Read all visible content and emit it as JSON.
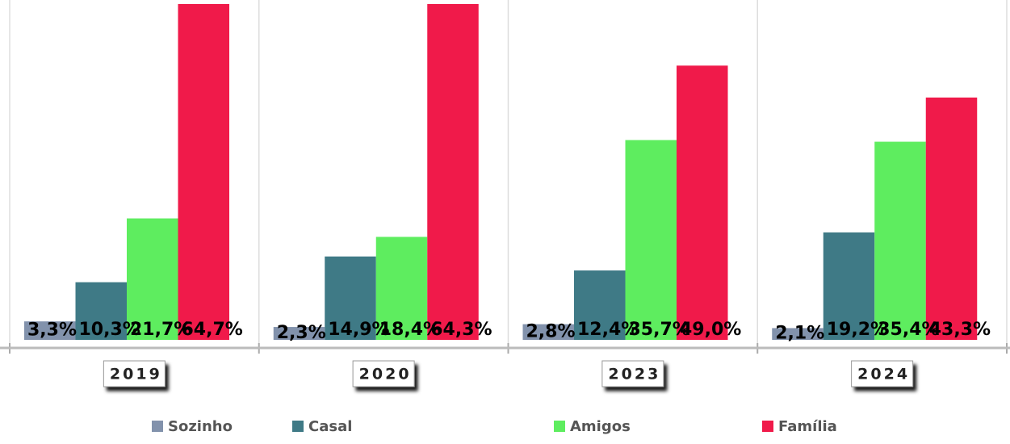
{
  "chart_data": {
    "type": "bar",
    "categories": [
      "2019",
      "2020",
      "2023",
      "2024"
    ],
    "series": [
      {
        "name": "Sozinho",
        "color": "#8292ac",
        "values": [
          3.3,
          2.3,
          2.8,
          2.1
        ],
        "value_labels": [
          "3,3%",
          "2,3%",
          "2,8%",
          "2,1%"
        ]
      },
      {
        "name": "Casal",
        "color": "#3f7a86",
        "values": [
          10.3,
          14.9,
          12.4,
          19.2
        ],
        "value_labels": [
          "10,3%",
          "14,9%",
          "12,4%",
          "19,2%"
        ]
      },
      {
        "name": "Amigos",
        "color": "#5eed5f",
        "values": [
          21.7,
          18.4,
          35.7,
          35.4
        ],
        "value_labels": [
          "21,7%",
          "18,4%",
          "35,7%",
          "35,4%"
        ]
      },
      {
        "name": "Família",
        "color": "#f01a4a",
        "values": [
          64.7,
          64.3,
          49.0,
          43.3
        ],
        "value_labels": [
          "64,7%",
          "64,3%",
          "49,0%",
          "43,3%"
        ]
      }
    ],
    "ylim": [
      0,
      60
    ]
  }
}
